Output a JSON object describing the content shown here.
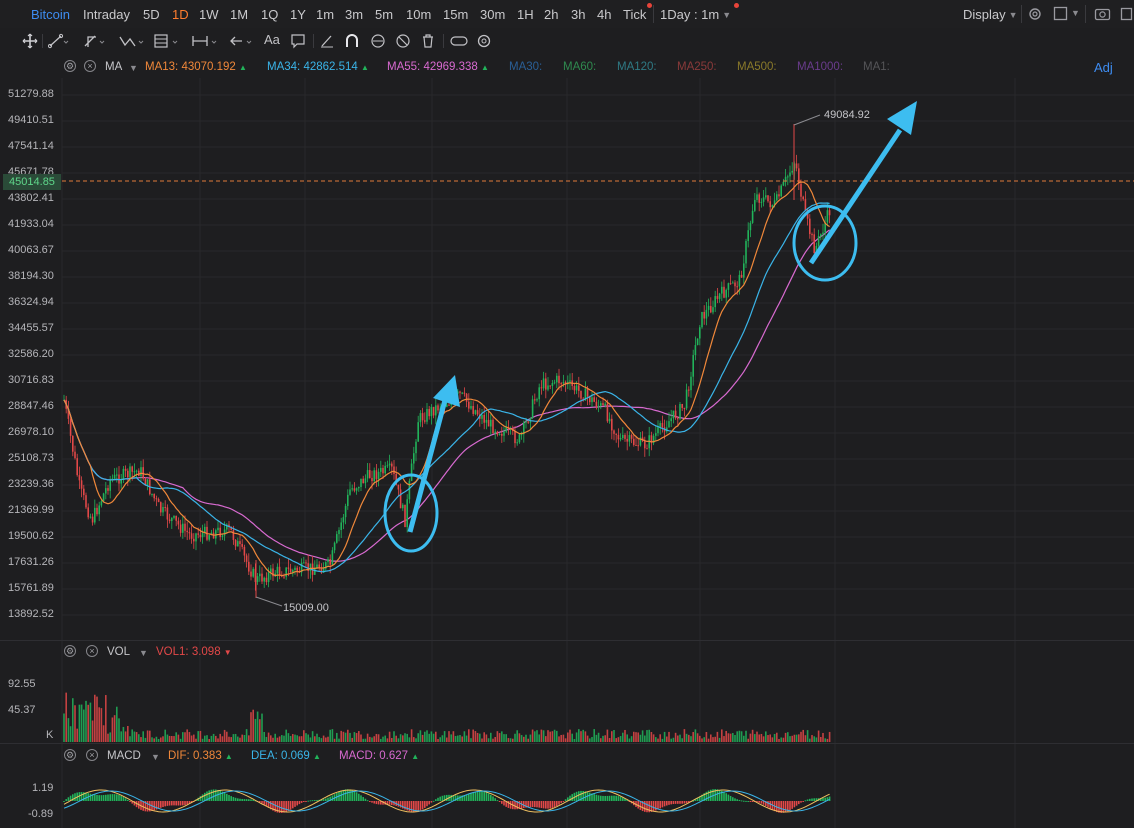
{
  "topbar": {
    "symbol": "Bitcoin",
    "timeframes": [
      "Intraday",
      "5D",
      "1D",
      "1W",
      "1M",
      "1Q",
      "1Y",
      "1m",
      "3m",
      "5m",
      "10m",
      "15m",
      "30m",
      "1H",
      "2h",
      "3h",
      "4h",
      "Tick"
    ],
    "active": "1D",
    "interval_selector": "1Day : 1m",
    "display_label": "Display"
  },
  "toolbar": {
    "tools": [
      "crosshair-icon",
      "trendline-icon",
      "channel-icon",
      "pattern-icon",
      "fib-icon",
      "measure-icon",
      "arrow-icon",
      "text-icon",
      "note-icon",
      "brush-icon",
      "magnet-icon",
      "lock-icon",
      "hide-icon",
      "trash-icon",
      "link-icon",
      "settings-icon"
    ],
    "text_tool_label": "Aa"
  },
  "main_indicator": {
    "name": "MA",
    "adj_label": "Adj",
    "items": [
      {
        "label": "MA13:",
        "value": "43070.192",
        "color": "#f0883a",
        "dir": "up"
      },
      {
        "label": "MA34:",
        "value": "42862.514",
        "color": "#3ab4e8",
        "dir": "up"
      },
      {
        "label": "MA55:",
        "value": "42969.338",
        "color": "#d86ad0",
        "dir": "up"
      },
      {
        "label": "MA30:",
        "value": "",
        "color": "#2a5f96",
        "dir": ""
      },
      {
        "label": "MA60:",
        "value": "",
        "color": "#2f8a4f",
        "dir": ""
      },
      {
        "label": "MA120:",
        "value": "",
        "color": "#2f7a84",
        "dir": ""
      },
      {
        "label": "MA250:",
        "value": "",
        "color": "#8a3a3a",
        "dir": ""
      },
      {
        "label": "MA500:",
        "value": "",
        "color": "#8a7a2a",
        "dir": ""
      },
      {
        "label": "MA1000:",
        "value": "",
        "color": "#6a3c8c",
        "dir": ""
      },
      {
        "label": "MA1:",
        "value": "",
        "color": "#555558",
        "dir": ""
      }
    ]
  },
  "price_axis": {
    "labels": [
      "51279.88",
      "49410.51",
      "47541.14",
      "45671.78",
      "43802.41",
      "41933.04",
      "40063.67",
      "38194.30",
      "36324.94",
      "34455.57",
      "32586.20",
      "30716.83",
      "28847.46",
      "26978.10",
      "25108.73",
      "23239.36",
      "21369.99",
      "19500.62",
      "17631.26",
      "15761.89",
      "13892.52"
    ],
    "current_price": "45014.85"
  },
  "annotations": {
    "high": "49084.92",
    "low": "15009.00"
  },
  "volume_panel": {
    "name": "VOL",
    "item_label": "VOL1:",
    "item_value": "3.098",
    "item_dir": "down",
    "axis": [
      "92.55",
      "45.37",
      "K"
    ]
  },
  "macd_panel": {
    "name": "MACD",
    "dif_label": "DIF:",
    "dif_value": "0.383",
    "dif_dir": "up",
    "dea_label": "DEA:",
    "dea_value": "0.069",
    "dea_dir": "up",
    "macd_label": "MACD:",
    "macd_value": "0.627",
    "macd_dir": "up",
    "axis": [
      "1.19",
      "-0.89"
    ]
  },
  "colors": {
    "up": "#21b35a",
    "down": "#e24848",
    "arrow": "#3dbdf0",
    "cur_price_line": "#e07a3a"
  },
  "chart_data": {
    "type": "line",
    "title": "Bitcoin",
    "series": [
      {
        "name": "MA13",
        "values": []
      },
      {
        "name": "MA34",
        "values": []
      },
      {
        "name": "MA55",
        "values": []
      }
    ],
    "ylim": [
      13892.52,
      51279.88
    ],
    "high": 49084.92,
    "low": 15009.0,
    "last": 45014.85
  }
}
